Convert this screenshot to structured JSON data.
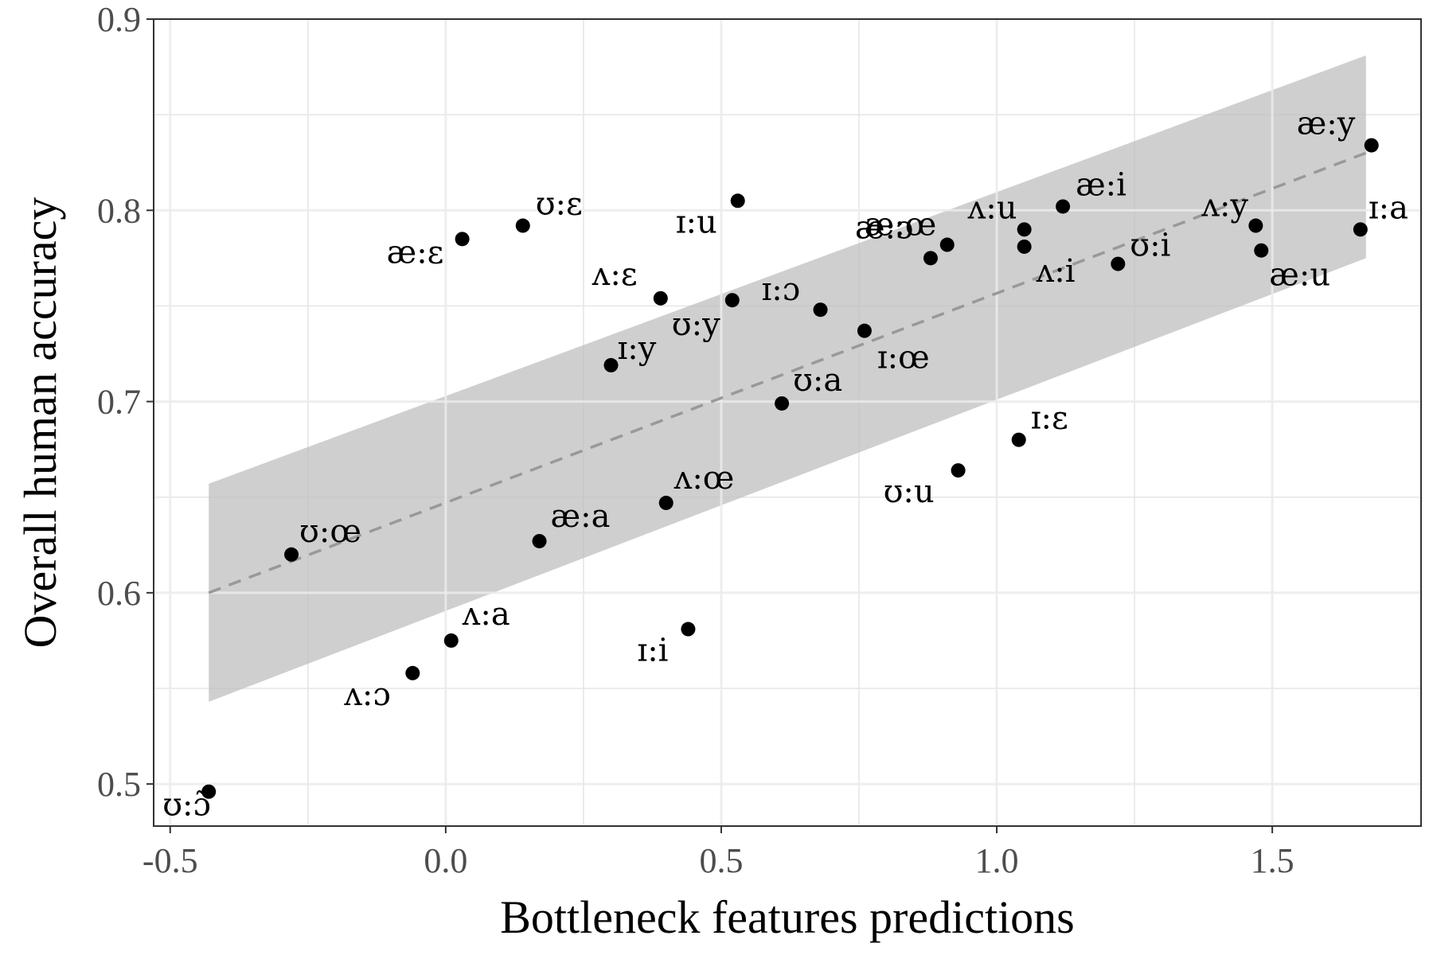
{
  "chart_data": {
    "type": "scatter",
    "title": "",
    "xlabel": "Bottleneck features predictions",
    "ylabel": "Overall human accuracy",
    "xlim": [
      -0.53,
      1.77
    ],
    "ylim": [
      0.478,
      0.9
    ],
    "x_ticks": [
      -0.5,
      0.0,
      0.5,
      1.0,
      1.5
    ],
    "x_tick_labels": [
      "-0.5",
      "0.0",
      "0.5",
      "1.0",
      "1.5"
    ],
    "y_ticks": [
      0.5,
      0.6,
      0.7,
      0.8,
      0.9
    ],
    "y_tick_labels": [
      "0.5",
      "0.6",
      "0.7",
      "0.8",
      "0.9"
    ],
    "grid": true,
    "colors": {
      "points": "#000000",
      "trend_line": "#999999",
      "ribbon": "#bdbdbd",
      "grid": "#e5e5e5",
      "panel_border": "#333333"
    },
    "trend": {
      "style": "dashed",
      "x": [
        -0.43,
        1.67
      ],
      "y": [
        0.6,
        0.83
      ],
      "ci_lower": [
        0.543,
        0.775
      ],
      "ci_upper": [
        0.657,
        0.881
      ]
    },
    "points": [
      {
        "label": "ʊ:ɔ̃",
        "x": -0.43,
        "y": 0.496
      },
      {
        "label": "ʊ:œ",
        "x": -0.28,
        "y": 0.62
      },
      {
        "label": "ʌ:ɔ",
        "x": -0.06,
        "y": 0.558
      },
      {
        "label": "ʌ:a",
        "x": 0.01,
        "y": 0.575
      },
      {
        "label": "æ:ɛ",
        "x": 0.03,
        "y": 0.785
      },
      {
        "label": "ʊ:ɛ",
        "x": 0.14,
        "y": 0.792
      },
      {
        "label": "æ:a",
        "x": 0.17,
        "y": 0.627
      },
      {
        "label": "ɪ:y",
        "x": 0.3,
        "y": 0.719
      },
      {
        "label": "ʌ:ɛ",
        "x": 0.39,
        "y": 0.754
      },
      {
        "label": "ʌ:œ",
        "x": 0.4,
        "y": 0.647
      },
      {
        "label": "ɪ:i",
        "x": 0.44,
        "y": 0.581
      },
      {
        "label": "ʊ:y",
        "x": 0.52,
        "y": 0.753
      },
      {
        "label": "ɪ:u",
        "x": 0.53,
        "y": 0.805
      },
      {
        "label": "ʊ:a",
        "x": 0.61,
        "y": 0.699
      },
      {
        "label": "ɪ:ɔ",
        "x": 0.68,
        "y": 0.748
      },
      {
        "label": "ɪ:œ",
        "x": 0.76,
        "y": 0.737
      },
      {
        "label": "æ:ɔ",
        "x": 0.88,
        "y": 0.775
      },
      {
        "label": "æ:œ",
        "x": 0.91,
        "y": 0.782
      },
      {
        "label": "ʊ:u",
        "x": 0.93,
        "y": 0.664
      },
      {
        "label": "ɪ:ɛ",
        "x": 1.04,
        "y": 0.68
      },
      {
        "label": "ʌ:u",
        "x": 1.05,
        "y": 0.79
      },
      {
        "label": "ʌ:i",
        "x": 1.05,
        "y": 0.781
      },
      {
        "label": "æ:i",
        "x": 1.12,
        "y": 0.802
      },
      {
        "label": "ʊ:i",
        "x": 1.22,
        "y": 0.772
      },
      {
        "label": "ʌ:y",
        "x": 1.47,
        "y": 0.792
      },
      {
        "label": "æ:u",
        "x": 1.48,
        "y": 0.779
      },
      {
        "label": "ɪ:a",
        "x": 1.66,
        "y": 0.79
      },
      {
        "label": "æ:y",
        "x": 1.68,
        "y": 0.834
      }
    ]
  }
}
